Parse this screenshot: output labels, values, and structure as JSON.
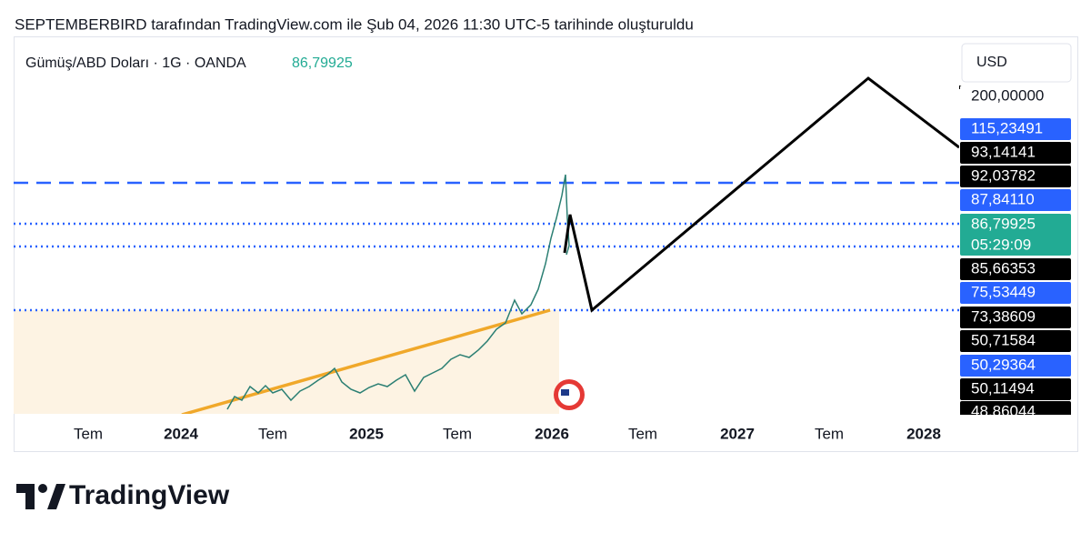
{
  "header": {
    "title": "SEPTEMBERBIRD tarafından TradingView.com ile Şub 04, 2026 11:30 UTC-5 tarihinde oluşturuldu"
  },
  "symbol": {
    "name": "Gümüş/ABD Doları · 1G · OANDA",
    "price": "86,79925"
  },
  "currency": "USD",
  "price_labels": [
    "200,00000",
    "115,23491",
    "93,14141",
    "92,03782",
    "87,84110",
    "86,79925",
    "85,66353",
    "75,53449",
    "73,38609",
    "50,71584",
    "50,29364",
    "50,11494",
    "48,86044"
  ],
  "countdown": "05:29:09",
  "time_labels": [
    "Tem",
    "2024",
    "Tem",
    "2025",
    "Tem",
    "2026",
    "Tem",
    "2027",
    "Tem",
    "2028"
  ],
  "footer": {
    "logo": "TradingView"
  }
}
